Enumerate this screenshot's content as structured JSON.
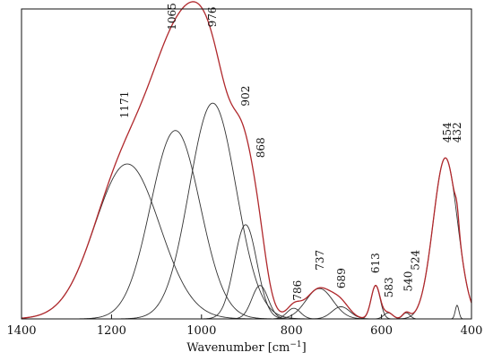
{
  "chart_data": {
    "type": "line",
    "title": "",
    "xlabel": "Wavenumber [cm",
    "xlabel_sup": "−1",
    "xlabel_close": "]",
    "ylabel": "",
    "x_reversed": true,
    "xlim": [
      1400,
      400
    ],
    "ylim": [
      0,
      1.02
    ],
    "x_ticks": [
      1400,
      1200,
      1000,
      800,
      600,
      400
    ],
    "y_ticks_shown": false,
    "grid": false,
    "legend": "none",
    "colors": {
      "envelope": "#b0282c",
      "components": "#333333"
    },
    "components": [
      {
        "center": 1165,
        "height": 0.51,
        "sigma": 72
      },
      {
        "center": 1058,
        "height": 0.62,
        "sigma": 55
      },
      {
        "center": 975,
        "height": 0.71,
        "sigma": 52
      },
      {
        "center": 902,
        "height": 0.31,
        "sigma": 25
      },
      {
        "center": 870,
        "height": 0.11,
        "sigma": 18
      },
      {
        "center": 795,
        "height": 0.035,
        "sigma": 15
      },
      {
        "center": 738,
        "height": 0.1,
        "sigma": 30
      },
      {
        "center": 690,
        "height": 0.04,
        "sigma": 20
      },
      {
        "center": 613,
        "height": 0.11,
        "sigma": 10
      },
      {
        "center": 585,
        "height": 0.02,
        "sigma": 10
      },
      {
        "center": 545,
        "height": 0.02,
        "sigma": 8
      },
      {
        "center": 458,
        "height": 0.53,
        "sigma": 27
      },
      {
        "center": 432,
        "height": 0.045,
        "sigma": 4
      }
    ],
    "peak_labels": [
      {
        "label": "1171",
        "x": 1171,
        "y": 0.66
      },
      {
        "label": "1065",
        "x": 1065,
        "y": 0.95
      },
      {
        "label": "976",
        "x": 976,
        "y": 0.96
      },
      {
        "label": "902",
        "x": 902,
        "y": 0.7
      },
      {
        "label": "868",
        "x": 868,
        "y": 0.53
      },
      {
        "label": "786",
        "x": 786,
        "y": 0.06
      },
      {
        "label": "737",
        "x": 737,
        "y": 0.16
      },
      {
        "label": "689",
        "x": 689,
        "y": 0.1
      },
      {
        "label": "613",
        "x": 613,
        "y": 0.15
      },
      {
        "label": "583",
        "x": 583,
        "y": 0.07
      },
      {
        "label": "540",
        "x": 540,
        "y": 0.09
      },
      {
        "label": "524",
        "x": 524,
        "y": 0.16
      },
      {
        "label": "454",
        "x": 454,
        "y": 0.58
      },
      {
        "label": "432",
        "x": 432,
        "y": 0.58
      }
    ]
  }
}
